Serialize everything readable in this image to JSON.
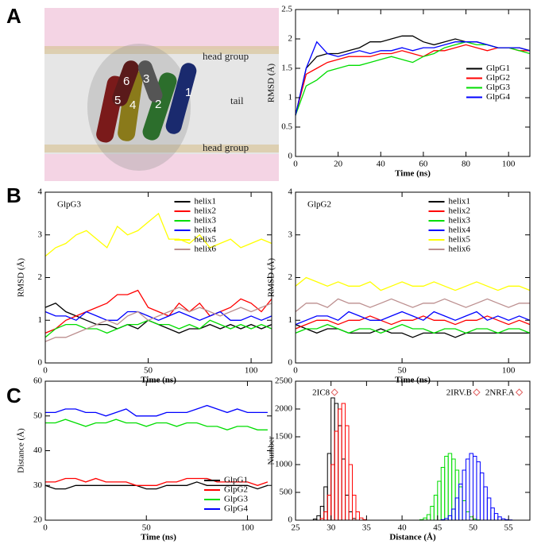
{
  "panel_labels": [
    "A",
    "B",
    "C"
  ],
  "illustration": {
    "labels": [
      "head group",
      "tail",
      "head group"
    ],
    "helices": [
      "1",
      "2",
      "3",
      "4",
      "5",
      "6"
    ]
  },
  "chart_data": [
    {
      "type": "line",
      "x_label": "Time (ns)",
      "y_label": "RMSD (Å)",
      "legend": "right",
      "xlim": [
        0,
        110
      ],
      "ylim": [
        0,
        2.5
      ],
      "xticks": [
        0,
        20,
        40,
        60,
        80,
        100
      ],
      "yticks": [
        0,
        0.5,
        1,
        1.5,
        2,
        2.5
      ],
      "x": [
        0,
        5,
        10,
        15,
        20,
        25,
        30,
        35,
        40,
        45,
        50,
        55,
        60,
        65,
        70,
        75,
        80,
        85,
        90,
        95,
        100,
        105,
        110
      ],
      "series": [
        {
          "name": "GlpG1",
          "color": "#000000",
          "values": [
            0.7,
            1.5,
            1.7,
            1.75,
            1.75,
            1.8,
            1.85,
            1.95,
            1.95,
            2.0,
            2.05,
            2.05,
            1.95,
            1.9,
            1.95,
            2.0,
            1.95,
            1.95,
            1.9,
            1.85,
            1.85,
            1.85,
            1.8
          ]
        },
        {
          "name": "GlpG2",
          "color": "#ff0000",
          "values": [
            0.7,
            1.4,
            1.5,
            1.6,
            1.65,
            1.7,
            1.7,
            1.7,
            1.75,
            1.75,
            1.8,
            1.75,
            1.7,
            1.8,
            1.8,
            1.85,
            1.9,
            1.85,
            1.8,
            1.85,
            1.85,
            1.8,
            1.8
          ]
        },
        {
          "name": "GlpG3",
          "color": "#00dd00",
          "values": [
            0.7,
            1.2,
            1.3,
            1.45,
            1.5,
            1.55,
            1.55,
            1.6,
            1.65,
            1.7,
            1.65,
            1.6,
            1.7,
            1.75,
            1.85,
            1.9,
            1.95,
            1.9,
            1.9,
            1.85,
            1.85,
            1.8,
            1.75
          ]
        },
        {
          "name": "GlpG4",
          "color": "#0000ff",
          "values": [
            0.7,
            1.5,
            1.95,
            1.75,
            1.7,
            1.75,
            1.8,
            1.75,
            1.8,
            1.8,
            1.85,
            1.8,
            1.85,
            1.85,
            1.9,
            1.95,
            1.95,
            1.95,
            1.9,
            1.85,
            1.85,
            1.85,
            1.8
          ]
        }
      ]
    },
    {
      "type": "line",
      "x_label": "Time (ns)",
      "y_label": "RMSD (Å)",
      "annotation": "GlpG3",
      "legend": "upper center",
      "xlim": [
        0,
        110
      ],
      "ylim": [
        0,
        4
      ],
      "xticks": [
        0,
        50,
        100
      ],
      "yticks": [
        0,
        1,
        2,
        3,
        4
      ],
      "x": [
        0,
        5,
        10,
        15,
        20,
        25,
        30,
        35,
        40,
        45,
        50,
        55,
        60,
        65,
        70,
        75,
        80,
        85,
        90,
        95,
        100,
        105,
        110
      ],
      "series": [
        {
          "name": "helix1",
          "color": "#000000",
          "values": [
            1.3,
            1.4,
            1.2,
            1.1,
            1.0,
            0.9,
            0.9,
            0.8,
            0.9,
            0.8,
            1.0,
            0.9,
            0.8,
            0.7,
            0.8,
            0.8,
            0.9,
            0.8,
            0.9,
            0.8,
            0.9,
            0.8,
            0.9
          ]
        },
        {
          "name": "helix2",
          "color": "#ff0000",
          "values": [
            0.7,
            0.8,
            1.0,
            1.1,
            1.2,
            1.3,
            1.4,
            1.6,
            1.6,
            1.7,
            1.3,
            1.2,
            1.1,
            1.4,
            1.2,
            1.4,
            1.1,
            1.2,
            1.3,
            1.5,
            1.4,
            1.2,
            1.5
          ]
        },
        {
          "name": "helix3",
          "color": "#00dd00",
          "values": [
            0.6,
            0.8,
            0.9,
            0.9,
            0.8,
            0.8,
            0.7,
            0.8,
            0.9,
            0.9,
            1.0,
            0.9,
            0.9,
            0.8,
            0.9,
            0.8,
            1.0,
            0.9,
            0.8,
            0.9,
            0.8,
            0.9,
            0.8
          ]
        },
        {
          "name": "helix4",
          "color": "#0000ff",
          "values": [
            1.2,
            1.1,
            1.1,
            1.0,
            1.2,
            1.1,
            1.0,
            1.0,
            1.2,
            1.2,
            1.1,
            1.0,
            1.1,
            1.2,
            1.1,
            1.0,
            1.1,
            1.2,
            1.0,
            1.0,
            1.1,
            1.0,
            1.1
          ]
        },
        {
          "name": "helix5",
          "color": "#ffff00",
          "values": [
            2.5,
            2.7,
            2.8,
            3.0,
            3.1,
            2.9,
            2.7,
            3.2,
            3.0,
            3.1,
            3.3,
            3.5,
            2.9,
            2.9,
            2.8,
            3.0,
            2.7,
            2.8,
            2.9,
            2.7,
            2.8,
            2.9,
            2.8
          ]
        },
        {
          "name": "helix6",
          "color": "#bc8f8f",
          "values": [
            0.5,
            0.6,
            0.6,
            0.7,
            0.8,
            0.9,
            1.0,
            0.9,
            1.1,
            1.2,
            1.0,
            1.1,
            1.2,
            1.3,
            1.2,
            1.3,
            1.2,
            1.1,
            1.2,
            1.3,
            1.2,
            1.3,
            1.4
          ]
        }
      ]
    },
    {
      "type": "line",
      "x_label": "Time (ns)",
      "y_label": "RMSD (Å)",
      "annotation": "GlpG2",
      "legend": "upper center",
      "xlim": [
        0,
        110
      ],
      "ylim": [
        0,
        4
      ],
      "xticks": [
        0,
        50,
        100
      ],
      "yticks": [
        0,
        1,
        2,
        3,
        4
      ],
      "x": [
        0,
        5,
        10,
        15,
        20,
        25,
        30,
        35,
        40,
        45,
        50,
        55,
        60,
        65,
        70,
        75,
        80,
        85,
        90,
        95,
        100,
        105,
        110
      ],
      "series": [
        {
          "name": "helix1",
          "color": "#000000",
          "values": [
            0.9,
            0.8,
            0.7,
            0.8,
            0.8,
            0.7,
            0.7,
            0.7,
            0.8,
            0.7,
            0.7,
            0.6,
            0.7,
            0.7,
            0.7,
            0.6,
            0.7,
            0.7,
            0.7,
            0.7,
            0.7,
            0.7,
            0.7
          ]
        },
        {
          "name": "helix2",
          "color": "#ff0000",
          "values": [
            0.8,
            0.9,
            1.0,
            1.0,
            0.9,
            1.0,
            1.0,
            1.1,
            1.0,
            0.9,
            1.0,
            1.0,
            1.1,
            1.0,
            1.0,
            0.9,
            1.0,
            1.0,
            1.1,
            1.0,
            0.9,
            1.0,
            0.9
          ]
        },
        {
          "name": "helix3",
          "color": "#00dd00",
          "values": [
            0.7,
            0.8,
            0.8,
            0.9,
            0.8,
            0.7,
            0.8,
            0.8,
            0.7,
            0.8,
            0.9,
            0.8,
            0.8,
            0.7,
            0.8,
            0.8,
            0.7,
            0.8,
            0.8,
            0.7,
            0.8,
            0.8,
            0.7
          ]
        },
        {
          "name": "helix4",
          "color": "#0000ff",
          "values": [
            0.9,
            1.0,
            1.1,
            1.1,
            1.0,
            1.2,
            1.1,
            1.0,
            1.0,
            1.1,
            1.2,
            1.1,
            1.0,
            1.2,
            1.1,
            1.0,
            1.1,
            1.2,
            1.0,
            1.1,
            1.0,
            1.1,
            1.0
          ]
        },
        {
          "name": "helix5",
          "color": "#ffff00",
          "values": [
            1.8,
            2.0,
            1.9,
            1.8,
            1.9,
            1.8,
            1.8,
            1.9,
            1.7,
            1.8,
            1.9,
            1.8,
            1.8,
            1.9,
            1.8,
            1.7,
            1.8,
            1.9,
            1.8,
            1.7,
            1.8,
            1.8,
            1.7
          ]
        },
        {
          "name": "helix6",
          "color": "#bc8f8f",
          "values": [
            1.2,
            1.4,
            1.4,
            1.3,
            1.5,
            1.4,
            1.4,
            1.3,
            1.4,
            1.5,
            1.4,
            1.3,
            1.4,
            1.4,
            1.5,
            1.4,
            1.3,
            1.4,
            1.5,
            1.4,
            1.3,
            1.4,
            1.4
          ]
        }
      ]
    },
    {
      "type": "line",
      "x_label": "Time (ns)",
      "y_label": "Distance (Å)",
      "legend": "lower right",
      "xlim": [
        0,
        112
      ],
      "ylim": [
        20,
        60
      ],
      "xticks": [
        0,
        50,
        100
      ],
      "yticks": [
        20,
        30,
        40,
        50,
        60
      ],
      "x": [
        0,
        5,
        10,
        15,
        20,
        25,
        30,
        35,
        40,
        45,
        50,
        55,
        60,
        65,
        70,
        75,
        80,
        85,
        90,
        95,
        100,
        105,
        110
      ],
      "series": [
        {
          "name": "GlpG1",
          "color": "#000000",
          "values": [
            30,
            29,
            29,
            30,
            30,
            30,
            30,
            30,
            30,
            30,
            29,
            29,
            30,
            30,
            30,
            31,
            30,
            30,
            30,
            30,
            30,
            29,
            30
          ]
        },
        {
          "name": "GlpG2",
          "color": "#ff0000",
          "values": [
            31,
            31,
            32,
            32,
            31,
            32,
            31,
            31,
            31,
            30,
            30,
            30,
            31,
            31,
            32,
            32,
            32,
            31,
            31,
            31,
            31,
            30,
            31
          ]
        },
        {
          "name": "GlpG3",
          "color": "#00dd00",
          "values": [
            48,
            48,
            49,
            48,
            47,
            48,
            48,
            49,
            48,
            48,
            47,
            48,
            48,
            47,
            48,
            48,
            47,
            47,
            46,
            47,
            47,
            46,
            46
          ]
        },
        {
          "name": "GlpG4",
          "color": "#0000ff",
          "values": [
            51,
            51,
            52,
            52,
            51,
            51,
            50,
            51,
            52,
            50,
            50,
            50,
            51,
            51,
            51,
            52,
            53,
            52,
            51,
            52,
            51,
            51,
            51
          ]
        }
      ]
    },
    {
      "type": "histogram",
      "x_label": "Distance (Å)",
      "y_label": "Number",
      "xlim": [
        25,
        58
      ],
      "ylim": [
        0,
        2500
      ],
      "xticks": [
        25,
        30,
        35,
        40,
        45,
        50,
        55
      ],
      "yticks": [
        0,
        500,
        1000,
        1500,
        2000,
        2500
      ],
      "annotations": [
        {
          "text": "2IC8",
          "x": 30.5,
          "y": 2300
        },
        {
          "text": "2IRV.B",
          "x": 50.5,
          "y": 2300
        },
        {
          "text": "2NRF.A",
          "x": 56.5,
          "y": 2300
        }
      ],
      "series": [
        {
          "color": "#000000",
          "bins": [
            27.5,
            28,
            28.5,
            29,
            29.5,
            30,
            30.5,
            31,
            31.5,
            32,
            32.5,
            33,
            33.5
          ],
          "values": [
            20,
            80,
            250,
            600,
            1200,
            2200,
            2100,
            1700,
            1100,
            450,
            150,
            30
          ]
        },
        {
          "color": "#ff0000",
          "bins": [
            28.5,
            29,
            29.5,
            30,
            30.5,
            31,
            31.5,
            32,
            32.5,
            33,
            33.5,
            34,
            34.5,
            35
          ],
          "values": [
            30,
            150,
            450,
            1000,
            1600,
            2000,
            2100,
            1700,
            1000,
            450,
            150,
            40,
            10
          ]
        },
        {
          "color": "#00dd00",
          "bins": [
            42.5,
            43,
            43.5,
            44,
            44.5,
            45,
            45.5,
            46,
            46.5,
            47,
            47.5,
            48,
            48.5,
            49,
            49.5,
            50,
            50.5,
            51
          ],
          "values": [
            10,
            40,
            100,
            250,
            450,
            700,
            950,
            1150,
            1200,
            1100,
            900,
            600,
            350,
            150,
            60,
            20,
            5
          ]
        },
        {
          "color": "#0000ff",
          "bins": [
            45.5,
            46,
            46.5,
            47,
            47.5,
            48,
            48.5,
            49,
            49.5,
            50,
            50.5,
            51,
            51.5,
            52,
            52.5,
            53,
            53.5,
            54,
            54.5,
            55,
            55.5
          ],
          "values": [
            10,
            30,
            80,
            200,
            400,
            650,
            900,
            1100,
            1200,
            1150,
            1050,
            850,
            600,
            400,
            220,
            120,
            60,
            25,
            10,
            5
          ]
        }
      ]
    }
  ]
}
